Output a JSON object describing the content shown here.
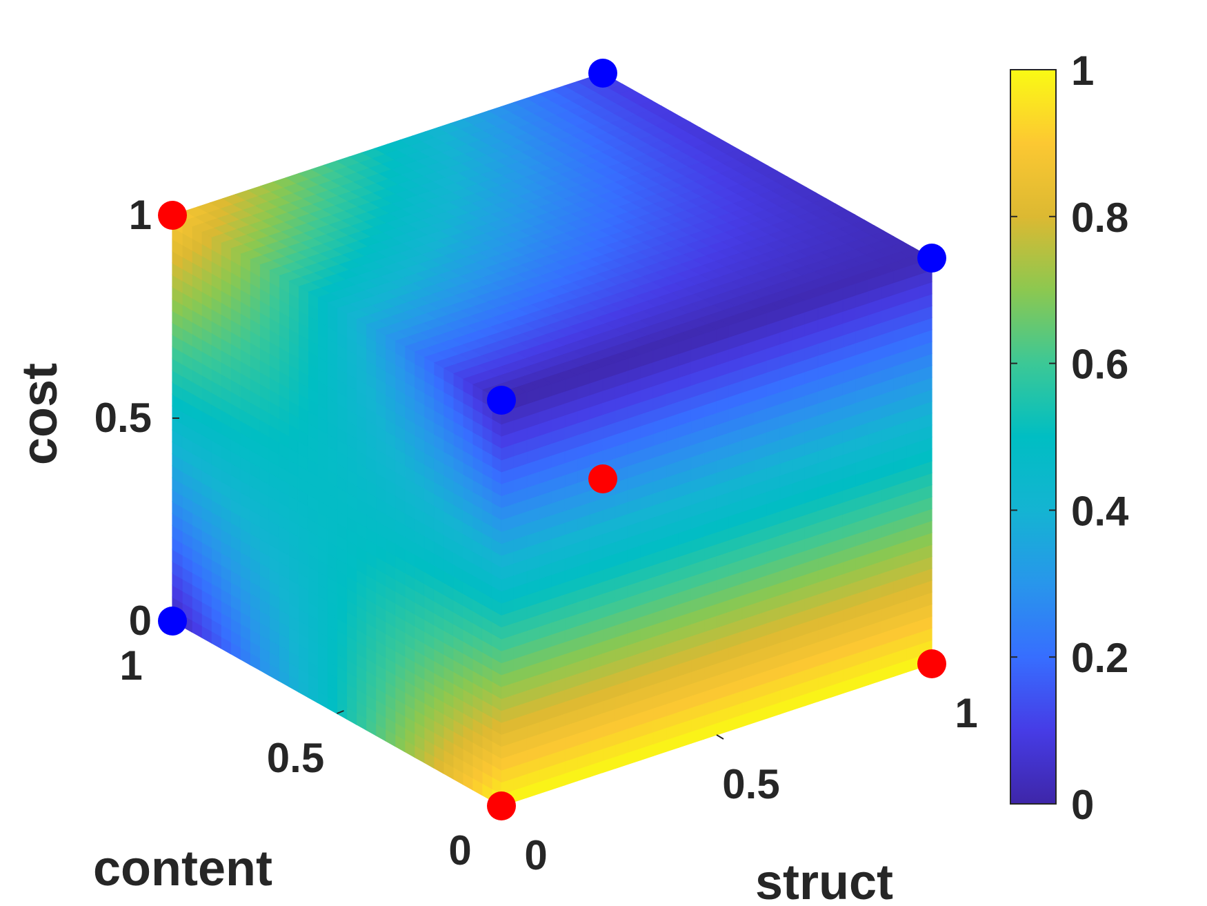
{
  "chart_data": {
    "type": "scatter",
    "subtype": "3d-cube-colored-surface",
    "axes": {
      "x": {
        "label": "content",
        "range": [
          0,
          1
        ],
        "ticks": [
          "0",
          "0.5",
          "1"
        ]
      },
      "y": {
        "label": "struct",
        "range": [
          0,
          1
        ],
        "ticks": [
          "0",
          "0.5",
          "1"
        ]
      },
      "z": {
        "label": "cost",
        "range": [
          0,
          1
        ],
        "ticks": [
          "0",
          "0.5",
          "1"
        ]
      }
    },
    "colorbar": {
      "colormap": "parula",
      "range": [
        0,
        1
      ],
      "ticks": [
        "0",
        "0.2",
        "0.4",
        "0.6",
        "0.8",
        "1"
      ]
    },
    "corner_points": [
      {
        "content": 0,
        "struct": 0,
        "cost": 0,
        "color": "red"
      },
      {
        "content": 1,
        "struct": 0,
        "cost": 0,
        "color": "blue"
      },
      {
        "content": 0,
        "struct": 1,
        "cost": 0,
        "color": "red"
      },
      {
        "content": 1,
        "struct": 1,
        "cost": 0,
        "color": "red"
      },
      {
        "content": 0,
        "struct": 0,
        "cost": 1,
        "color": "blue"
      },
      {
        "content": 1,
        "struct": 0,
        "cost": 1,
        "color": "red"
      },
      {
        "content": 0,
        "struct": 1,
        "cost": 1,
        "color": "blue"
      },
      {
        "content": 1,
        "struct": 1,
        "cost": 1,
        "color": "blue"
      }
    ],
    "grid": false,
    "legend": "none"
  }
}
